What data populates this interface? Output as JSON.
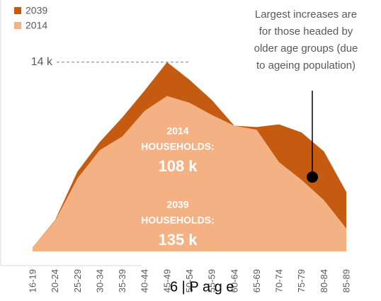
{
  "chart_data": {
    "type": "area",
    "categories": [
      "16-19",
      "20-24",
      "25-29",
      "30-34",
      "35-39",
      "40-44",
      "45-49",
      "50-54",
      "55-59",
      "60-64",
      "65-69",
      "70-74",
      "75-79",
      "80-84",
      "85-89"
    ],
    "series": [
      {
        "name": "2039",
        "color": "#c55a11",
        "values": [
          300,
          2300,
          5900,
          8100,
          9900,
          11900,
          14000,
          12700,
          11200,
          9300,
          9200,
          9400,
          8800,
          7400,
          4400
        ]
      },
      {
        "name": "2014",
        "color": "#f4b183",
        "values": [
          300,
          2250,
          5400,
          7500,
          8500,
          10400,
          11500,
          11000,
          10100,
          9300,
          9000,
          6600,
          5300,
          3800,
          1700
        ]
      }
    ],
    "ylim": [
      0,
      18600
    ],
    "yticks": [
      {
        "value": 14000,
        "label": "14 k"
      }
    ],
    "legend": "top-left",
    "annotation": [
      "Largest increases are",
      "for those headed by",
      "older age groups (due",
      "to ageing population)"
    ],
    "labels_2014": [
      "2014",
      "HOUSEHOLDS:",
      "108 k"
    ],
    "labels_2039": [
      "2039",
      "HOUSEHOLDS:",
      "135 k"
    ],
    "footer": "6 | P a g e"
  }
}
